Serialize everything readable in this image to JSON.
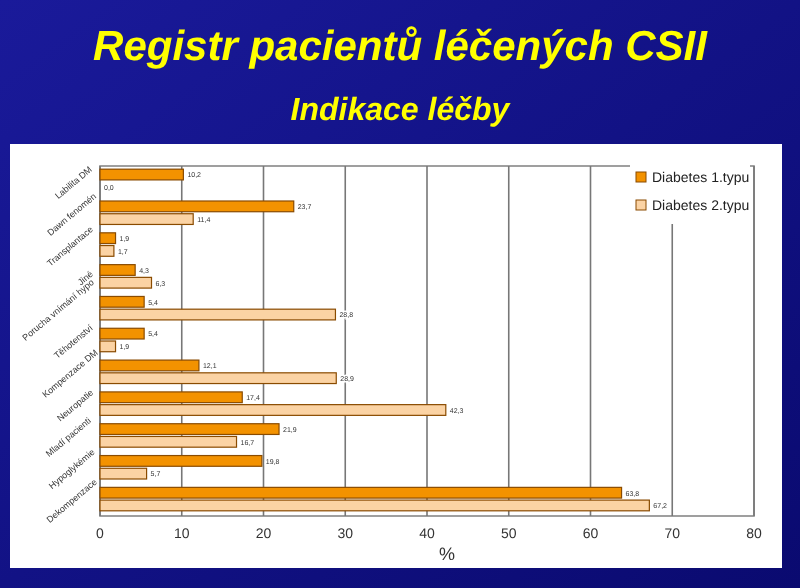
{
  "chart_data": {
    "type": "bar",
    "orientation": "horizontal",
    "title": "Registr pacientů léčených CSII",
    "subtitle": "Indikace léčby",
    "xlabel": "%",
    "categories": [
      "Labilita DM",
      "Dawn fenomén",
      "Transplantace",
      "Jiné",
      "Porucha vnímání hypo",
      "Těhotenství",
      "Kompenzace DM",
      "Neuropatie",
      "Mladí pacienti",
      "Hypoglykémie",
      "Dekompenzace"
    ],
    "series": [
      {
        "name": "Diabetes 1.typu",
        "color": "#f39200",
        "values": [
          10.2,
          23.7,
          1.9,
          4.3,
          5.4,
          5.4,
          12.1,
          17.4,
          21.9,
          19.8,
          63.8
        ],
        "value_labels": [
          "10,2",
          "23,7",
          "1,9",
          "4,3",
          "5,4",
          "5,4",
          "12,1",
          "17,4",
          "21,9",
          "19,8",
          "63,8"
        ]
      },
      {
        "name": "Diabetes 2.typu",
        "color": "#fbd3a4",
        "values": [
          0.0,
          11.4,
          1.7,
          6.3,
          28.8,
          1.9,
          28.9,
          42.3,
          16.7,
          5.7,
          67.2
        ],
        "value_labels": [
          "0,0",
          "11,4",
          "1,7",
          "6,3",
          "28,8",
          "1,9",
          "28,9",
          "42,3",
          "16,7",
          "5,7",
          "67,2"
        ]
      }
    ],
    "xlim": [
      0,
      80
    ],
    "xticks": [
      0,
      10,
      20,
      30,
      40,
      50,
      60,
      70,
      80
    ],
    "grid": "x",
    "legend": "top right"
  }
}
